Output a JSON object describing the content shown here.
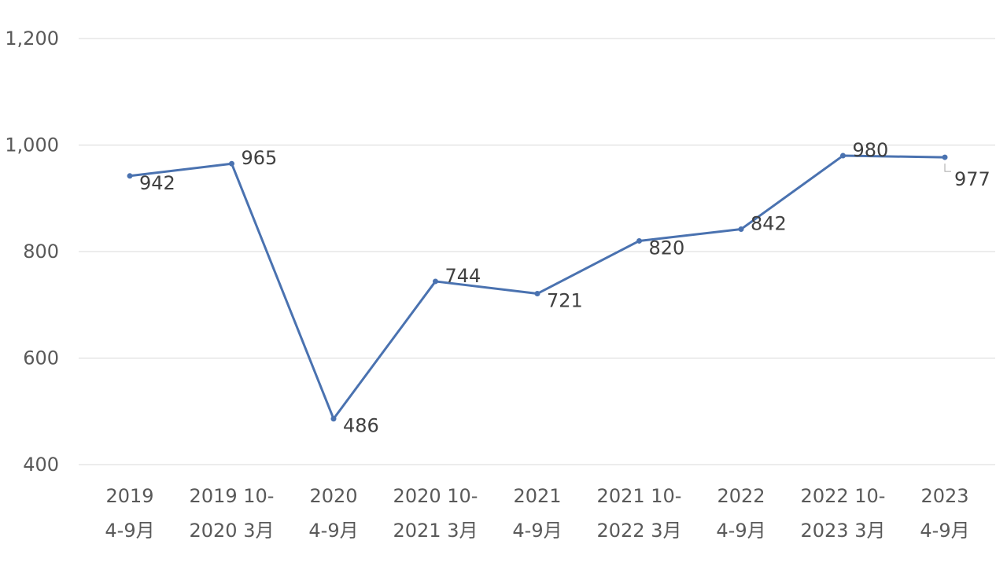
{
  "chart_data": {
    "type": "line",
    "categories": [
      [
        "2019",
        "4-9月"
      ],
      [
        "2019 10-",
        "2020 3月"
      ],
      [
        "2020",
        "4-9月"
      ],
      [
        "2020 10-",
        "2021 3月"
      ],
      [
        "2021",
        "4-9月"
      ],
      [
        "2021 10-",
        "2022 3月"
      ],
      [
        "2022",
        "4-9月"
      ],
      [
        "2022 10-",
        "2023 3月"
      ],
      [
        "2023",
        "4-9月"
      ]
    ],
    "series": [
      {
        "values": [
          942,
          965,
          486,
          744,
          721,
          820,
          842,
          980,
          977
        ],
        "color": "#4a72b0"
      }
    ],
    "data_labels": [
      "942",
      "965",
      "486",
      "744",
      "721",
      "820",
      "842",
      "980",
      "977"
    ],
    "yticks": [
      400,
      600,
      800,
      1000,
      1200
    ],
    "ytick_labels": [
      "400",
      "600",
      "800",
      "1,000",
      "1,200"
    ],
    "ylim": [
      400,
      1200
    ],
    "grid": true,
    "legend": "none",
    "title": "",
    "xlabel": "",
    "ylabel": ""
  }
}
